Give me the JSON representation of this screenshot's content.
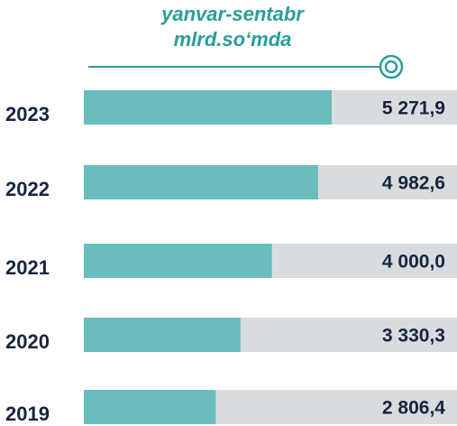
{
  "chart_data": {
    "type": "bar",
    "orientation": "horizontal",
    "title": [
      "yanvar-sentabr",
      "mlrd.so‘mda"
    ],
    "categories": [
      "2023",
      "2022",
      "2021",
      "2020",
      "2019"
    ],
    "values": [
      5271.9,
      4982.6,
      4000.0,
      3330.3,
      2806.4
    ],
    "value_labels": [
      "5 271,9",
      "4 982,6",
      "4 000,0",
      "3 330,3",
      "2 806,4"
    ],
    "color": "#6bbcbc"
  }
}
